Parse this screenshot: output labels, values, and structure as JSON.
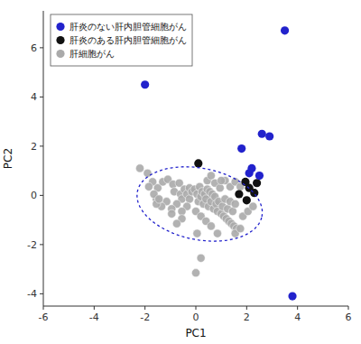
{
  "chart_data": {
    "type": "scatter",
    "xlabel": "PC1",
    "ylabel": "PC2",
    "xlim": [
      -6,
      6
    ],
    "ylim": [
      -4.5,
      7.5
    ],
    "xticks": [
      -6,
      -4,
      -2,
      0,
      2,
      4,
      6
    ],
    "yticks": [
      -4,
      -2,
      0,
      2,
      4,
      6
    ],
    "grid": false,
    "legend": "upper left",
    "marker": "circle",
    "series": [
      {
        "name": "肝炎のない肝内胆管細胞がん",
        "color": "#2222cc",
        "x": [
          3.5,
          -2.0,
          1.8,
          2.6,
          2.9,
          2.1,
          2.5,
          2.2,
          3.8
        ],
        "values": [
          6.7,
          4.5,
          1.9,
          2.5,
          2.4,
          0.9,
          0.8,
          1.1,
          -4.1
        ]
      },
      {
        "name": "肝炎のある肝内胆管細胞がん",
        "color": "#111111",
        "x": [
          0.1,
          2.1,
          2.3,
          2.0,
          1.7,
          1.95,
          2.4
        ],
        "values": [
          1.3,
          0.3,
          0.1,
          -0.2,
          0.05,
          0.55,
          0.5
        ]
      },
      {
        "name": "肝細胞がん",
        "color": "#aaaaaa",
        "x": [
          -2.2,
          -1.9,
          -1.7,
          -1.5,
          -1.3,
          -1.1,
          -0.9,
          -0.85,
          -0.65,
          -0.6,
          -0.55,
          -0.45,
          -0.35,
          -0.25,
          -0.25,
          -0.15,
          -0.05,
          0.05,
          0.1,
          0.15,
          0.2,
          0.25,
          0.3,
          0.35,
          0.4,
          0.45,
          0.5,
          0.55,
          0.6,
          0.65,
          0.7,
          0.75,
          0.8,
          0.85,
          0.9,
          1.0,
          1.05,
          1.1,
          1.15,
          1.2,
          1.25,
          1.3,
          1.35,
          1.4,
          1.45,
          1.5,
          1.55,
          1.6,
          -0.35,
          -0.55,
          -0.75,
          -0.95,
          -1.15,
          -1.35,
          -1.55,
          -1.55,
          0.0,
          0.2,
          0.4,
          0.6,
          0.05,
          0.2,
          0.0,
          -0.55,
          -0.75,
          -0.95,
          1.85,
          2.05,
          2.25,
          1.55,
          1.75,
          0.85,
          -1.85,
          -1.65,
          -1.45,
          0.45,
          0.6,
          0.75,
          0.95,
          1.15,
          1.35,
          1.55,
          1.75,
          1.0
        ],
        "values": [
          1.1,
          0.9,
          0.55,
          0.3,
          0.55,
          0.65,
          0.45,
          0.15,
          0.5,
          0.05,
          -0.15,
          0.25,
          0.05,
          0.3,
          -0.15,
          0.15,
          0.25,
          0.05,
          -0.25,
          0.35,
          -0.05,
          0.15,
          -0.35,
          0.05,
          -0.15,
          0.25,
          -0.45,
          0.15,
          -0.25,
          0.05,
          -0.55,
          -0.05,
          -0.35,
          -0.65,
          -0.25,
          -0.75,
          -0.45,
          -0.85,
          -0.15,
          -0.95,
          -0.55,
          -1.05,
          -0.25,
          -1.15,
          -0.65,
          -1.25,
          -0.35,
          -1.35,
          -0.45,
          -0.65,
          -0.35,
          -0.55,
          -0.25,
          -0.45,
          -0.15,
          -0.35,
          -0.65,
          -0.85,
          -1.05,
          -1.25,
          -1.55,
          -2.55,
          -3.15,
          -0.95,
          -1.15,
          -0.75,
          -0.85,
          -0.65,
          -0.45,
          -1.55,
          -1.35,
          -1.55,
          0.35,
          0.05,
          -0.15,
          0.6,
          0.8,
          0.5,
          0.3,
          0.6,
          0.35,
          0.55,
          0.35,
          0.6
        ]
      }
    ],
    "ellipse": {
      "center": [
        0.15,
        -0.35
      ],
      "width": 5.0,
      "height": 2.9,
      "angle": -12,
      "color": "#2222cc"
    }
  }
}
